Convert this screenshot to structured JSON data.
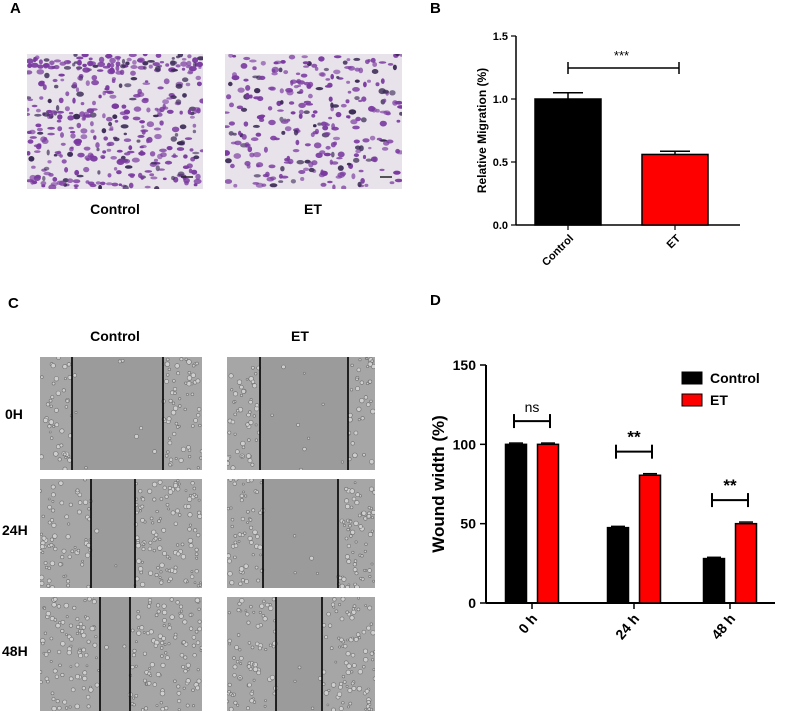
{
  "panels": {
    "a": {
      "letter": "A",
      "images": [
        "Control",
        "ET"
      ]
    },
    "b": {
      "letter": "B"
    },
    "c": {
      "letter": "C",
      "columns": [
        "Control",
        "ET"
      ],
      "rows": [
        "0H",
        "24H",
        "48H"
      ]
    },
    "d": {
      "letter": "D"
    }
  },
  "colors": {
    "control": "#000000",
    "et": "#ff0000",
    "stain": "#7a3aa0"
  },
  "chart_data": [
    {
      "type": "bar",
      "ylabel": "Relative Migration (%)",
      "xlabel": "",
      "categories": [
        "Control",
        "ET"
      ],
      "values": [
        1.0,
        0.56
      ],
      "errors": [
        0.05,
        0.025
      ],
      "ylim": [
        0.0,
        1.5
      ],
      "yticks": [
        "0.0",
        "0.5",
        "1.0",
        "1.5"
      ],
      "significance": [
        {
          "from": "Control",
          "to": "ET",
          "label": "***"
        }
      ],
      "legend": "none",
      "grid": false
    },
    {
      "type": "bar",
      "ylabel": "Wound width (%)",
      "xlabel": "",
      "categories": [
        "0 h",
        "24 h",
        "48 h"
      ],
      "series": [
        {
          "name": "Control",
          "values": [
            100,
            47.5,
            28
          ],
          "errors": [
            0.8,
            0.8,
            0.8
          ]
        },
        {
          "name": "ET",
          "values": [
            100,
            80.5,
            50
          ],
          "errors": [
            0.8,
            1.0,
            1.0
          ]
        }
      ],
      "ylim": [
        0,
        150
      ],
      "yticks": [
        "0",
        "50",
        "100",
        "150"
      ],
      "significance": [
        {
          "category": "0 h",
          "label": "ns"
        },
        {
          "category": "24 h",
          "label": "**"
        },
        {
          "category": "48 h",
          "label": "**"
        }
      ],
      "legend": "top-right",
      "grid": false
    }
  ]
}
